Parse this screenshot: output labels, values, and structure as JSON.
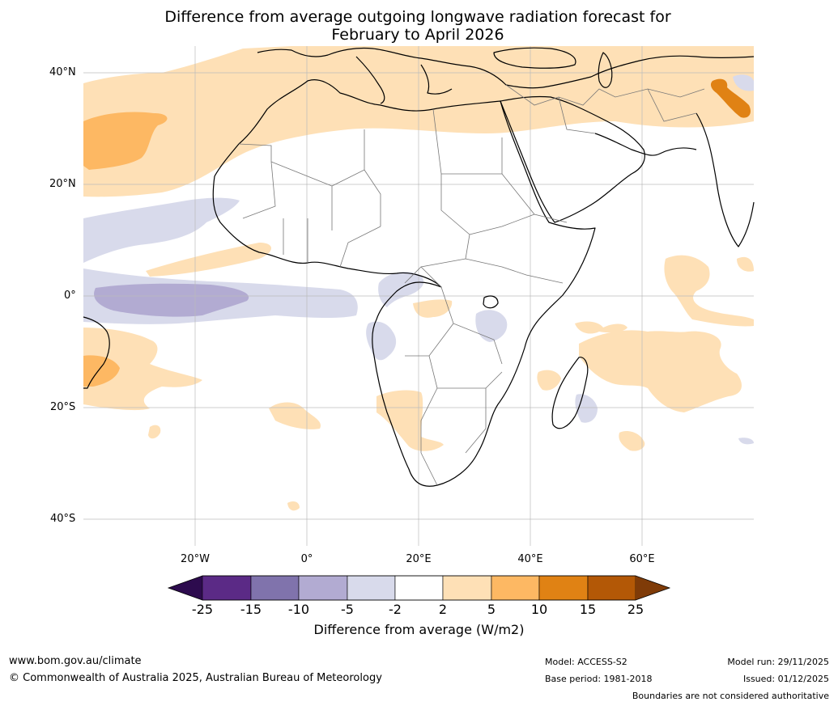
{
  "title": {
    "line1": "Difference from average outgoing longwave radiation forecast for",
    "line2": "February to April 2026"
  },
  "axes": {
    "lat_labels": [
      "40°N",
      "20°N",
      "0°",
      "20°S",
      "40°S"
    ],
    "lon_labels": [
      "20°W",
      "0°",
      "20°E",
      "40°E",
      "60°E"
    ]
  },
  "colorbar": {
    "ticks": [
      "-25",
      "-15",
      "-10",
      "-5",
      "-2",
      "2",
      "5",
      "10",
      "15",
      "25"
    ],
    "colors": [
      "#2d0b4e",
      "#5b2a86",
      "#8073ac",
      "#b2abd2",
      "#d8daeb",
      "#ffffff",
      "#fee0b6",
      "#fdb863",
      "#e08214",
      "#b35806",
      "#7f3b08"
    ],
    "label": "Difference from average (W/m2)"
  },
  "footer": {
    "website": "www.bom.gov.au/climate",
    "copyright": "© Commonwealth of Australia 2025, Australian Bureau of Meteorology",
    "model": "Model: ACCESS-S2",
    "base_period": "Base period: 1981-2018",
    "model_run": "Model run: 29/11/2025",
    "issued": "Issued: 01/12/2025",
    "boundaries": "Boundaries are not considered authoritative"
  },
  "map_data": {
    "region": "Africa and surrounding oceans",
    "lon_range": [
      -40,
      80
    ],
    "lat_range": [
      -45,
      45
    ]
  }
}
